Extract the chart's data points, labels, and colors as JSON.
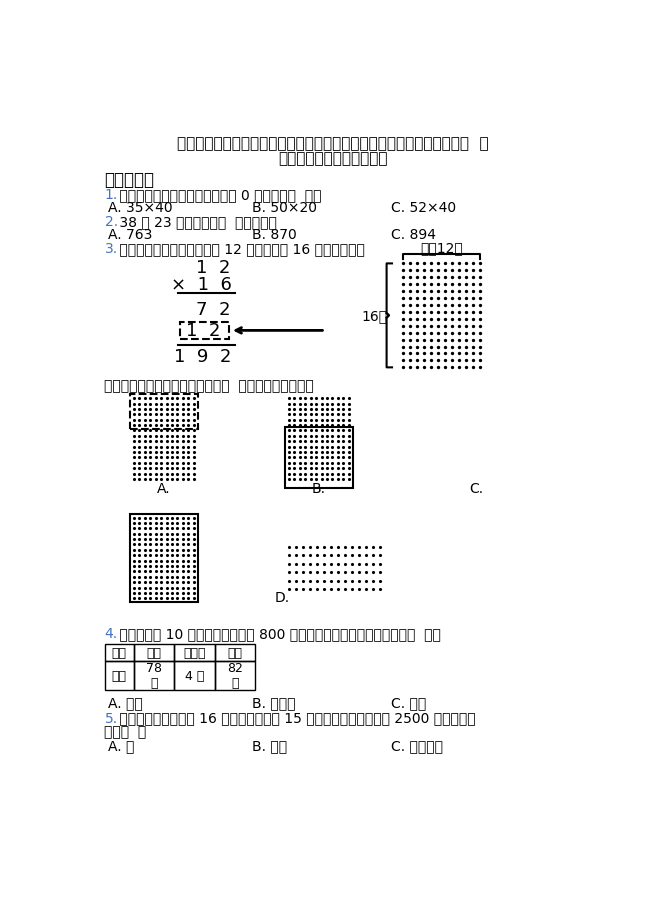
{
  "title_line1": "（易错题）最新人教版小学数学三年级下册第四单元《两位数乘两位数》  单",
  "title_line2": "元测试题（包含答案解析）",
  "section1": "一、选择题",
  "q1_num": "1.",
  "q1_text": " 下面算式中，积的末尾只有两个 0 的算式是（  ）。",
  "q1_a": "A. 35×40",
  "q1_b": "B. 50×20",
  "q1_c": "C. 52×40",
  "q2_num": "2.",
  "q2_text": " 38 与 23 的积和下面（  ）最接近。",
  "q2_a": "A. 763",
  "q2_b": "B. 870",
  "q2_c": "C. 894",
  "q3_num": "3.",
  "q3_text": " 学校举行广播操表演，每行 12 人，一共有 16 行（如图）。",
  "label_meihang": "每行12人",
  "label_16hang": "16行",
  "q3_sub_text": "紖式中筭头所指的可以用上面图（  ）框中的点来表示。",
  "q4_num": "4.",
  "q4_text": " 张老师买了 10 个球，付给营业员 800 元，估一估，他最有可能买的是（  ）。",
  "table_headers": [
    "种类",
    "篮球",
    "乒乓球",
    "足球"
  ],
  "table_row1_labels": [
    "单价",
    "78\n元",
    "4 元",
    "82\n元"
  ],
  "q4_a": "A. 篮球",
  "q4_b": "B. 乒乓球",
  "q4_c": "C. 足球",
  "q5_num": "5.",
  "q5_line1": " 某市体育馆的看台分 16 个区，每个区有 15 个座位。它能同时容纳 2500 人观看比赛",
  "q5_line2": "吗？（  ）",
  "q5_a": "A. 能",
  "q5_b": "B. 不能",
  "q5_c": "C. 无法确定",
  "bg_color": "#ffffff",
  "num_color": "#4472c4",
  "text_color": "#000000",
  "title_color": "#000000"
}
